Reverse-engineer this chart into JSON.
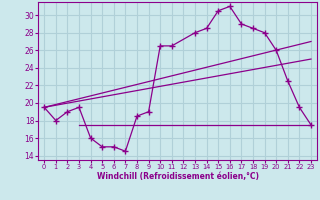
{
  "xlabel": "Windchill (Refroidissement éolien,°C)",
  "bg_color": "#cce8ec",
  "line_color": "#8b008b",
  "grid_color": "#b0d0d8",
  "xlim": [
    -0.5,
    23.5
  ],
  "ylim": [
    13.5,
    31.5
  ],
  "yticks": [
    14,
    16,
    18,
    20,
    22,
    24,
    26,
    28,
    30
  ],
  "xticks": [
    0,
    1,
    2,
    3,
    4,
    5,
    6,
    7,
    8,
    9,
    10,
    11,
    12,
    13,
    14,
    15,
    16,
    17,
    18,
    19,
    20,
    21,
    22,
    23
  ],
  "main_x": [
    0,
    1,
    2,
    3,
    4,
    5,
    6,
    7,
    8,
    9,
    10,
    11,
    13,
    14,
    15,
    16,
    17,
    18,
    19,
    20,
    21,
    22,
    23
  ],
  "main_y": [
    19.5,
    18.0,
    19.0,
    19.5,
    16.0,
    15.0,
    15.0,
    14.5,
    18.5,
    19.0,
    26.5,
    26.5,
    28.0,
    28.5,
    30.5,
    31.0,
    29.0,
    28.5,
    28.0,
    26.0,
    22.5,
    19.5,
    17.5
  ],
  "line1_x": [
    0,
    23
  ],
  "line1_y": [
    19.5,
    27.0
  ],
  "line2_x": [
    0,
    23
  ],
  "line2_y": [
    19.5,
    25.0
  ],
  "hline_x": [
    3,
    23
  ],
  "hline_y": [
    17.5,
    17.5
  ]
}
